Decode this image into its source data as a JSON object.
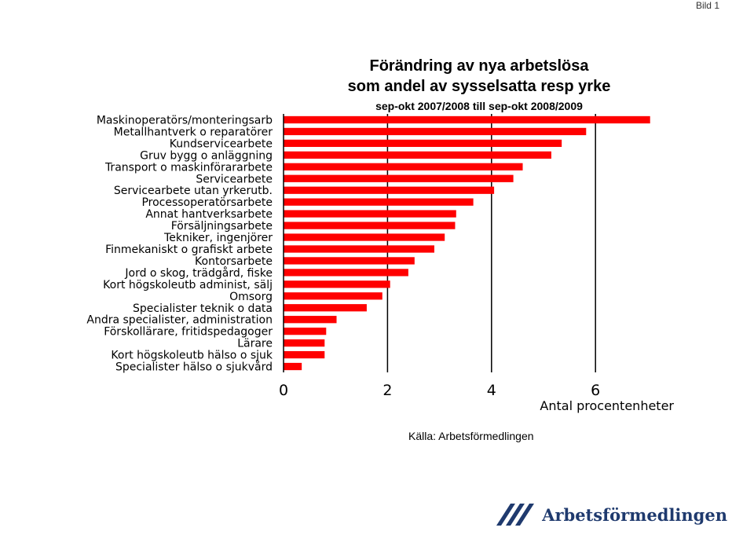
{
  "slide_label": "Bild 1",
  "title_line1": "Förändring av nya arbetslösa",
  "title_line2": "som andel av sysselsatta resp yrke",
  "title_line3": "sep-okt 2007/2008 till sep-okt 2008/2009",
  "source": "Källa: Arbetsförmedlingen",
  "logo_text": "Arbetsförmedlingen",
  "colors": {
    "bar": "#ff0000",
    "grid": "#000000"
  },
  "chart_data": {
    "type": "bar",
    "orientation": "horizontal",
    "title": "Förändring av nya arbetslösa som andel av sysselsatta resp yrke",
    "subtitle": "sep-okt 2007/2008 till sep-okt 2008/2009",
    "xlabel": "Antal procentenheter",
    "xlim": [
      0,
      7
    ],
    "xticks": [
      0,
      2,
      4,
      6
    ],
    "grid": "vertical",
    "categories": [
      "Maskinoperatörs/monteringsarb",
      "Metallhantverk o reparatörer",
      "Kundservicearbete",
      "Gruv bygg o anläggning",
      "Transport o maskinförararbete",
      "Servicearbete",
      "Servicearbete utan yrkerutb.",
      "Processoperatörsarbete",
      "Annat hantverksarbete",
      "Försäljningsarbete",
      "Tekniker, ingenjörer",
      "Finmekaniskt o grafiskt arbete",
      "Kontorsarbete",
      "Jord o skog, trädgård, fiske",
      "Kort högskoleutb administ, sälj",
      "Omsorg",
      "Specialister teknik o data",
      "Andra specialister, administration",
      "Förskollärare, fritidspedagoger",
      "Lärare",
      "Kort högskoleutb hälso o sjuk",
      "Specialister hälso o sjukvård"
    ],
    "values": [
      7.05,
      5.82,
      5.35,
      5.15,
      4.6,
      4.42,
      4.05,
      3.65,
      3.32,
      3.3,
      3.1,
      2.9,
      2.52,
      2.4,
      2.05,
      1.9,
      1.6,
      1.02,
      0.82,
      0.79,
      0.79,
      0.35
    ]
  }
}
